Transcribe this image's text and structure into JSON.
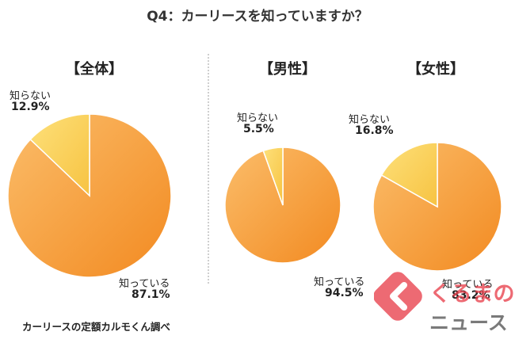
{
  "title": "Q4：カーリースを知っていますか？",
  "source": "カーリースの定額カルモくん調べ",
  "colors": {
    "known": "#f7a23e",
    "unknown": "#fbd15a",
    "logo_red": "#e8414d"
  },
  "chart_data": [
    {
      "type": "pie",
      "title": "【全体】",
      "labels": [
        "知っている",
        "知らない"
      ],
      "values": [
        87.1,
        12.9
      ],
      "value_labels": [
        "87.1%",
        "12.9%"
      ]
    },
    {
      "type": "pie",
      "title": "【男性】",
      "labels": [
        "知っている",
        "知らない"
      ],
      "values": [
        94.5,
        5.5
      ],
      "value_labels": [
        "94.5%",
        "5.5%"
      ]
    },
    {
      "type": "pie",
      "title": "【女性】",
      "labels": [
        "知っている",
        "知らない"
      ],
      "values": [
        83.2,
        16.8
      ],
      "value_labels": [
        "83.2%",
        "16.8%"
      ]
    }
  ],
  "logo": {
    "icon": "kuruma-news-logo",
    "text_top": "くるまの",
    "text_bottom": "ニュース"
  }
}
